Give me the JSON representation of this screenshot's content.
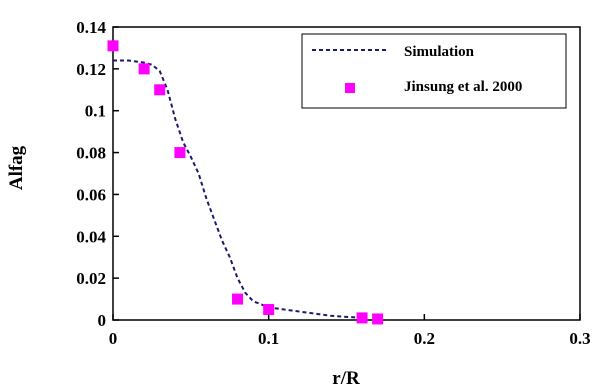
{
  "chart_data": {
    "type": "line",
    "title": "",
    "xlabel": "r/R",
    "ylabel": "Alfag",
    "xlim": [
      0,
      0.3
    ],
    "ylim": [
      0,
      0.14
    ],
    "xticks": [
      0,
      0.1,
      0.2,
      0.3
    ],
    "xtick_labels": [
      "0",
      "0.1",
      "0.2",
      "0.3"
    ],
    "yticks": [
      0,
      0.02,
      0.04,
      0.06,
      0.08,
      0.1,
      0.12,
      0.14
    ],
    "ytick_labels": [
      "0",
      "0.02",
      "0.04",
      "0.06",
      "0.08",
      "0.1",
      "0.12",
      "0.14"
    ],
    "grid": false,
    "legend": "top-right",
    "series": [
      {
        "name": "Simulation",
        "kind": "dashed-line",
        "color": "#1a1a6e",
        "x": [
          0,
          0.01,
          0.02,
          0.025,
          0.03,
          0.035,
          0.04,
          0.045,
          0.05,
          0.055,
          0.06,
          0.065,
          0.07,
          0.075,
          0.08,
          0.085,
          0.09,
          0.1,
          0.12,
          0.14,
          0.16
        ],
        "y": [
          0.124,
          0.124,
          0.123,
          0.122,
          0.119,
          0.11,
          0.096,
          0.085,
          0.078,
          0.07,
          0.058,
          0.048,
          0.038,
          0.03,
          0.02,
          0.013,
          0.009,
          0.006,
          0.004,
          0.002,
          0.001
        ]
      },
      {
        "name": "Jinsung et al. 2000",
        "kind": "square-markers",
        "color": "#ff00ff",
        "x": [
          0,
          0.02,
          0.03,
          0.043,
          0.08,
          0.1,
          0.16,
          0.17
        ],
        "y": [
          0.131,
          0.12,
          0.11,
          0.08,
          0.01,
          0.005,
          0.001,
          0.0005
        ]
      }
    ]
  }
}
